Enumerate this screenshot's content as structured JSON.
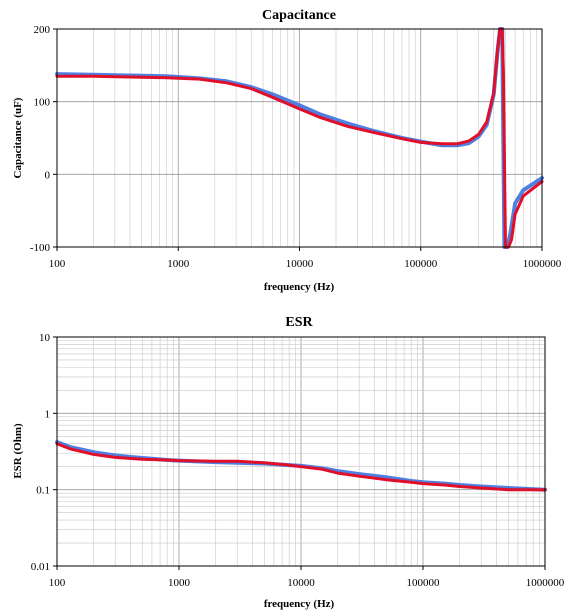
{
  "chart_data": [
    {
      "type": "line",
      "title": "Capacitance",
      "xlabel": "frequency (Hz)",
      "ylabel": "Capacitance (uF)",
      "xscale": "log",
      "xlim": [
        100,
        1000000
      ],
      "ylim": [
        -100,
        200
      ],
      "x_ticks": [
        "100",
        "1000",
        "10000",
        "100000",
        "1000000"
      ],
      "y_ticks": [
        "-100",
        "0",
        "100",
        "200"
      ],
      "grid": true,
      "series": [
        {
          "color": "#4f7fe0",
          "x": [
            100,
            200,
            400,
            800,
            1500,
            2500,
            4000,
            6000,
            10000,
            15000,
            25000,
            40000,
            70000,
            100000,
            150000,
            200000,
            250000,
            300000,
            350000,
            400000,
            430000,
            450000,
            470000,
            490000,
            520000,
            550000,
            600000,
            700000,
            1000000
          ],
          "y": [
            138,
            137,
            136,
            135,
            132,
            128,
            120,
            110,
            95,
            82,
            70,
            60,
            50,
            45,
            40,
            40,
            43,
            52,
            68,
            110,
            170,
            200,
            200,
            -100,
            -100,
            -80,
            -40,
            -22,
            -5
          ]
        },
        {
          "color": "#e0102a",
          "x": [
            100,
            200,
            400,
            800,
            1500,
            2500,
            4000,
            6000,
            10000,
            15000,
            25000,
            40000,
            70000,
            100000,
            150000,
            200000,
            250000,
            300000,
            350000,
            400000,
            430000,
            450000,
            470000,
            480000,
            500000,
            530000,
            560000,
            600000,
            700000,
            1000000
          ],
          "y": [
            135,
            135,
            134,
            133,
            131,
            126,
            118,
            106,
            90,
            78,
            66,
            58,
            49,
            44,
            42,
            42,
            46,
            55,
            72,
            112,
            172,
            200,
            200,
            140,
            -100,
            -100,
            -90,
            -55,
            -30,
            -10
          ]
        }
      ]
    },
    {
      "type": "line",
      "title": "ESR",
      "xlabel": "frequency (Hz)",
      "ylabel": "ESR (Ohm)",
      "xscale": "log",
      "yscale": "log",
      "xlim": [
        100,
        1000000
      ],
      "ylim": [
        0.01,
        10
      ],
      "x_ticks": [
        "100",
        "1000",
        "10000",
        "100000",
        "1000000"
      ],
      "y_ticks": [
        "0.01",
        "0.1",
        "1",
        "10"
      ],
      "grid": true,
      "series": [
        {
          "color": "#4f7fe0",
          "x": [
            100,
            130,
            200,
            300,
            500,
            800,
            1000,
            2000,
            3000,
            5000,
            8000,
            10000,
            15000,
            20000,
            30000,
            50000,
            80000,
            100000,
            150000,
            200000,
            300000,
            500000,
            1000000
          ],
          "y": [
            0.42,
            0.36,
            0.31,
            0.28,
            0.26,
            0.245,
            0.24,
            0.23,
            0.225,
            0.22,
            0.21,
            0.205,
            0.19,
            0.175,
            0.16,
            0.145,
            0.13,
            0.125,
            0.12,
            0.115,
            0.11,
            0.105,
            0.1
          ]
        },
        {
          "color": "#e0102a",
          "x": [
            100,
            130,
            200,
            300,
            500,
            800,
            1000,
            2000,
            3000,
            5000,
            8000,
            10000,
            15000,
            20000,
            30000,
            50000,
            80000,
            100000,
            150000,
            200000,
            300000,
            500000,
            1000000
          ],
          "y": [
            0.4,
            0.34,
            0.29,
            0.265,
            0.25,
            0.245,
            0.24,
            0.235,
            0.235,
            0.225,
            0.21,
            0.2,
            0.185,
            0.165,
            0.15,
            0.135,
            0.125,
            0.12,
            0.115,
            0.11,
            0.105,
            0.1,
            0.1
          ]
        }
      ]
    }
  ]
}
